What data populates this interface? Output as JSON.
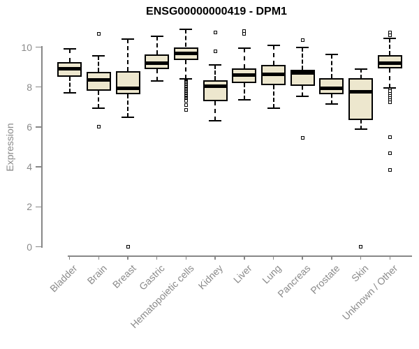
{
  "title": "ENSG00000000419 - DPM1",
  "chart_data": {
    "type": "boxplot",
    "title": "ENSG00000000419 - DPM1",
    "xlabel": "",
    "ylabel": "Expression",
    "ylim": [
      0,
      10.9
    ],
    "yticks": [
      0,
      2,
      4,
      6,
      8,
      10
    ],
    "grid": "off",
    "legend": "none",
    "categories": [
      "Bladder",
      "Brain",
      "Breast",
      "Gastric",
      "Hematopoietic cells",
      "Kidney",
      "Liver",
      "Lung",
      "Pancreas",
      "Prostate",
      "Skin",
      "Unknown / Other"
    ],
    "series": [
      {
        "name": "Bladder",
        "whisker_low": 7.7,
        "q1": 8.5,
        "median": 8.9,
        "q3": 9.25,
        "whisker_high": 9.9,
        "outliers": []
      },
      {
        "name": "Brain",
        "whisker_low": 6.95,
        "q1": 7.8,
        "median": 8.35,
        "q3": 8.75,
        "whisker_high": 9.55,
        "outliers": [
          10.65,
          6.0
        ]
      },
      {
        "name": "Breast",
        "whisker_low": 6.5,
        "q1": 7.65,
        "median": 7.95,
        "q3": 8.8,
        "whisker_high": 10.4,
        "outliers": [
          0
        ]
      },
      {
        "name": "Gastric",
        "whisker_low": 8.3,
        "q1": 8.9,
        "median": 9.2,
        "q3": 9.65,
        "whisker_high": 10.55,
        "outliers": []
      },
      {
        "name": "Hematopoietic cells",
        "whisker_low": 8.4,
        "q1": 9.35,
        "median": 9.7,
        "q3": 10.0,
        "whisker_high": 10.9,
        "outliers": [
          8.3,
          8.25,
          8.2,
          8.15,
          8.1,
          8.05,
          8.0,
          7.95,
          7.9,
          7.85,
          7.8,
          7.75,
          7.7,
          7.65,
          7.6,
          7.55,
          7.5,
          7.45,
          7.4,
          7.35,
          7.3,
          7.1,
          6.87
        ]
      },
      {
        "name": "Kidney",
        "whisker_low": 6.3,
        "q1": 7.3,
        "median": 8.05,
        "q3": 8.35,
        "whisker_high": 9.1,
        "outliers": [
          10.75,
          9.78
        ]
      },
      {
        "name": "Liver",
        "whisker_low": 7.35,
        "q1": 8.2,
        "median": 8.6,
        "q3": 8.95,
        "whisker_high": 9.95,
        "outliers": [
          10.8,
          10.68
        ]
      },
      {
        "name": "Lung",
        "whisker_low": 6.95,
        "q1": 8.1,
        "median": 8.65,
        "q3": 9.1,
        "whisker_high": 10.1,
        "outliers": []
      },
      {
        "name": "Pancreas",
        "whisker_low": 7.55,
        "q1": 8.05,
        "median": 8.7,
        "q3": 8.85,
        "whisker_high": 10.0,
        "outliers": [
          10.35,
          5.45
        ]
      },
      {
        "name": "Prostate",
        "whisker_low": 7.15,
        "q1": 7.65,
        "median": 7.95,
        "q3": 8.45,
        "whisker_high": 9.65,
        "outliers": []
      },
      {
        "name": "Skin",
        "whisker_low": 5.9,
        "q1": 6.35,
        "median": 7.75,
        "q3": 8.45,
        "whisker_high": 8.9,
        "outliers": [
          0
        ]
      },
      {
        "name": "Unknown / Other",
        "whisker_low": 7.95,
        "q1": 8.95,
        "median": 9.2,
        "q3": 9.6,
        "whisker_high": 10.45,
        "outliers": [
          10.75,
          10.6,
          7.85,
          7.8,
          7.65,
          7.55,
          7.45,
          7.35,
          7.25,
          5.5,
          4.7,
          3.85
        ]
      }
    ],
    "style": {
      "box_fill": "#ede7ce",
      "box_border": "#000000",
      "median_color": "#000000",
      "whisker_color": "#000000",
      "outlier_color": "#000000",
      "axis_color": "#878787",
      "tick_label_color": "#8a8a8a",
      "title_color": "#000000",
      "background": "#ffffff"
    }
  }
}
